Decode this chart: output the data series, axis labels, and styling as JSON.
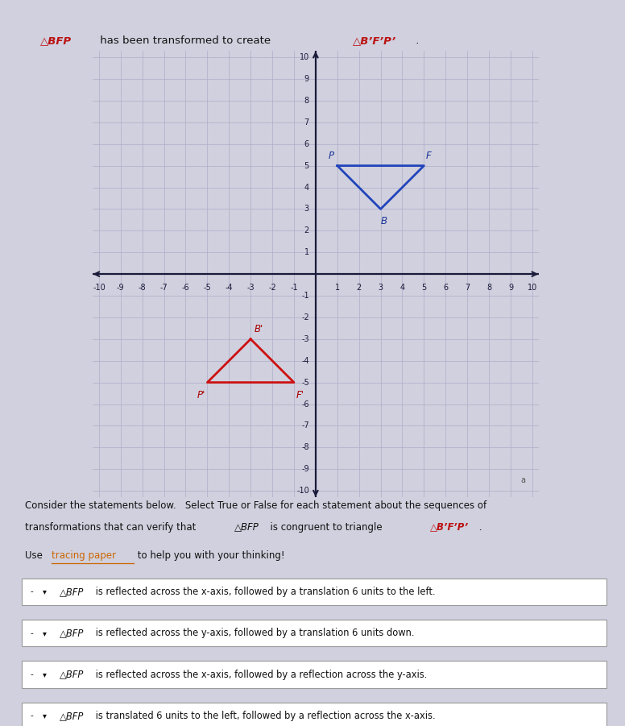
{
  "grid_range": [
    -10,
    10
  ],
  "grid_color": "#b0b0cc",
  "axis_color": "#1a1a3a",
  "triangle_BFP": {
    "P": [
      1,
      5
    ],
    "F": [
      5,
      5
    ],
    "B": [
      3,
      3
    ],
    "color": "#2244bb",
    "label_color": "#1a3399"
  },
  "triangle_prime": {
    "Bp": [
      -3,
      -3
    ],
    "Fp": [
      -1,
      -5
    ],
    "Pp": [
      -5,
      -5
    ],
    "color": "#cc1111",
    "label_color": "#aa0000"
  },
  "bg_color": "#d0d0de",
  "plot_bg": "#d8d8e8",
  "text_color": "#111111",
  "underline_color": "#cc6600",
  "title_red": "#bb1111",
  "consider_line1": "Consider the statements below.   Select True or False for each statement about the sequences of",
  "consider_line2_a": "transformations that can verify that  ",
  "consider_line2_b": "△BFP",
  "consider_line2_c": "  is congruent to triangle  ",
  "consider_line2_d": "△B’F’P’",
  "consider_line2_e": " .",
  "use_pre": "Use ",
  "use_link": "tracing paper",
  "use_post": " to help you with your thinking!",
  "statements": [
    "△BFP is reflected across the x-axis, followed by a translation 6 units to the left.",
    "△BFP is reflected across the y-axis, followed by a translation 6 units down.",
    "△BFP is reflected across the x-axis, followed by a reflection across the y-axis.",
    "△BFP is translated 6 units to the left, followed by a reflection across the x-axis."
  ],
  "title_pre": " has been transformed to create ",
  "title_tri1": "△BFP",
  "title_tri2": "△B’F’P’",
  "title_dot": " ."
}
